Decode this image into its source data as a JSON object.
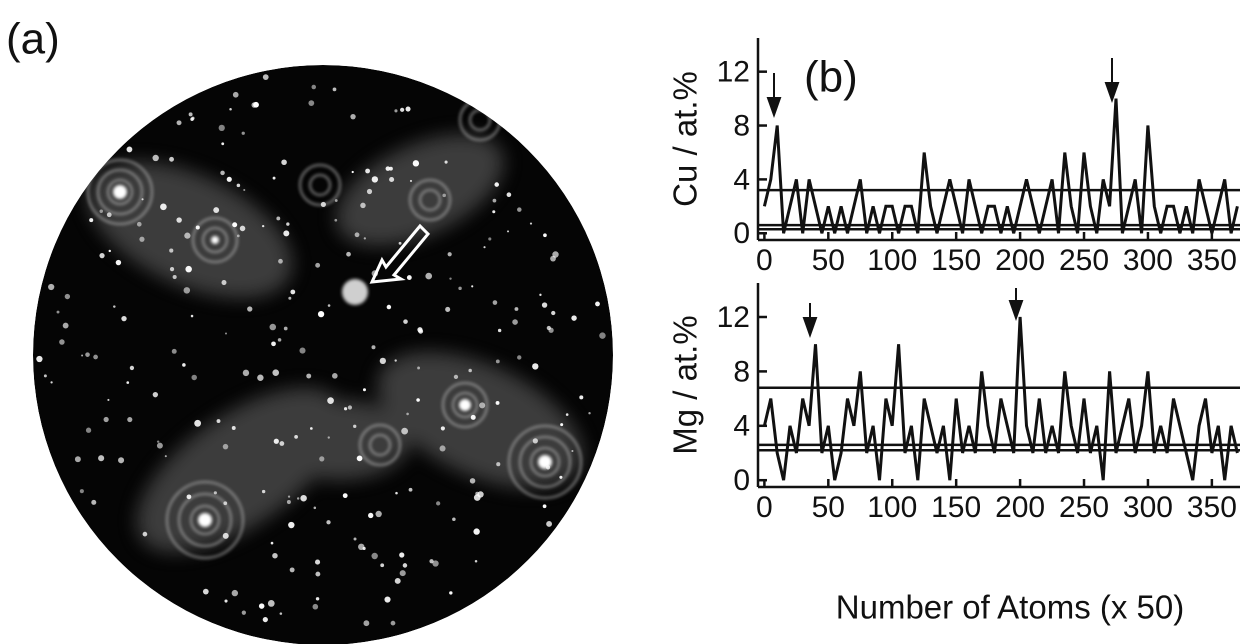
{
  "image": {
    "label": "(a)"
  },
  "chart_data": [
    {
      "type": "line",
      "panel_label": "(b)",
      "ylabel": "Cu / at.%",
      "x": [
        0,
        5,
        10,
        15,
        20,
        25,
        30,
        35,
        40,
        45,
        50,
        55,
        60,
        65,
        70,
        75,
        80,
        85,
        90,
        95,
        100,
        105,
        110,
        115,
        120,
        125,
        130,
        135,
        140,
        145,
        150,
        155,
        160,
        165,
        170,
        175,
        180,
        185,
        190,
        195,
        200,
        205,
        210,
        215,
        220,
        225,
        230,
        235,
        240,
        245,
        250,
        255,
        260,
        265,
        270,
        275,
        280,
        285,
        290,
        295,
        300,
        305,
        310,
        315,
        320,
        325,
        330,
        335,
        340,
        345,
        350,
        355,
        360,
        365,
        370
      ],
      "values": [
        2,
        4,
        8,
        0,
        2,
        4,
        0,
        4,
        2,
        0,
        2,
        0,
        2,
        0,
        2,
        4,
        0,
        2,
        0,
        2,
        2,
        0,
        2,
        2,
        0,
        6,
        2,
        0,
        2,
        4,
        2,
        0,
        4,
        2,
        0,
        2,
        2,
        0,
        2,
        0,
        2,
        4,
        2,
        0,
        2,
        4,
        0,
        6,
        2,
        0,
        6,
        2,
        0,
        4,
        2,
        10,
        0,
        2,
        4,
        0,
        8,
        2,
        0,
        2,
        2,
        0,
        2,
        0,
        4,
        2,
        0,
        2,
        4,
        0,
        2
      ],
      "color": "#111111",
      "hlines": [
        3.2,
        0.6,
        0.3
      ],
      "xlim": [
        -5,
        372
      ],
      "xticks": [
        0,
        50,
        100,
        150,
        200,
        250,
        300,
        350
      ],
      "ylim": [
        -0.5,
        14.5
      ],
      "yticks": [
        0,
        4,
        8,
        12
      ]
    },
    {
      "type": "line",
      "ylabel": "Mg / at.%",
      "xlabel": "Number of Atoms (x 50)",
      "x": [
        0,
        5,
        10,
        15,
        20,
        25,
        30,
        35,
        40,
        45,
        50,
        55,
        60,
        65,
        70,
        75,
        80,
        85,
        90,
        95,
        100,
        105,
        110,
        115,
        120,
        125,
        130,
        135,
        140,
        145,
        150,
        155,
        160,
        165,
        170,
        175,
        180,
        185,
        190,
        195,
        200,
        205,
        210,
        215,
        220,
        225,
        230,
        235,
        240,
        245,
        250,
        255,
        260,
        265,
        270,
        275,
        280,
        285,
        290,
        295,
        300,
        305,
        310,
        315,
        320,
        325,
        330,
        335,
        340,
        345,
        350,
        355,
        360,
        365,
        370
      ],
      "values": [
        4,
        6,
        2,
        0,
        4,
        2,
        6,
        4,
        10,
        2,
        4,
        0,
        2,
        6,
        4,
        8,
        2,
        4,
        0,
        6,
        4,
        10,
        2,
        4,
        0,
        6,
        4,
        2,
        4,
        0,
        6,
        2,
        4,
        2,
        8,
        4,
        2,
        6,
        4,
        2,
        12,
        4,
        2,
        6,
        2,
        4,
        2,
        8,
        4,
        2,
        6,
        2,
        4,
        0,
        8,
        2,
        4,
        6,
        2,
        4,
        8,
        2,
        4,
        2,
        6,
        4,
        2,
        0,
        4,
        6,
        2,
        4,
        0,
        4,
        2
      ],
      "color": "#111111",
      "hlines": [
        6.8,
        2.6,
        2.2
      ],
      "xlim": [
        -5,
        372
      ],
      "xticks": [
        0,
        50,
        100,
        150,
        200,
        250,
        300,
        350
      ],
      "ylim": [
        -0.5,
        14.5
      ],
      "yticks": [
        0,
        4,
        8,
        12
      ]
    }
  ]
}
